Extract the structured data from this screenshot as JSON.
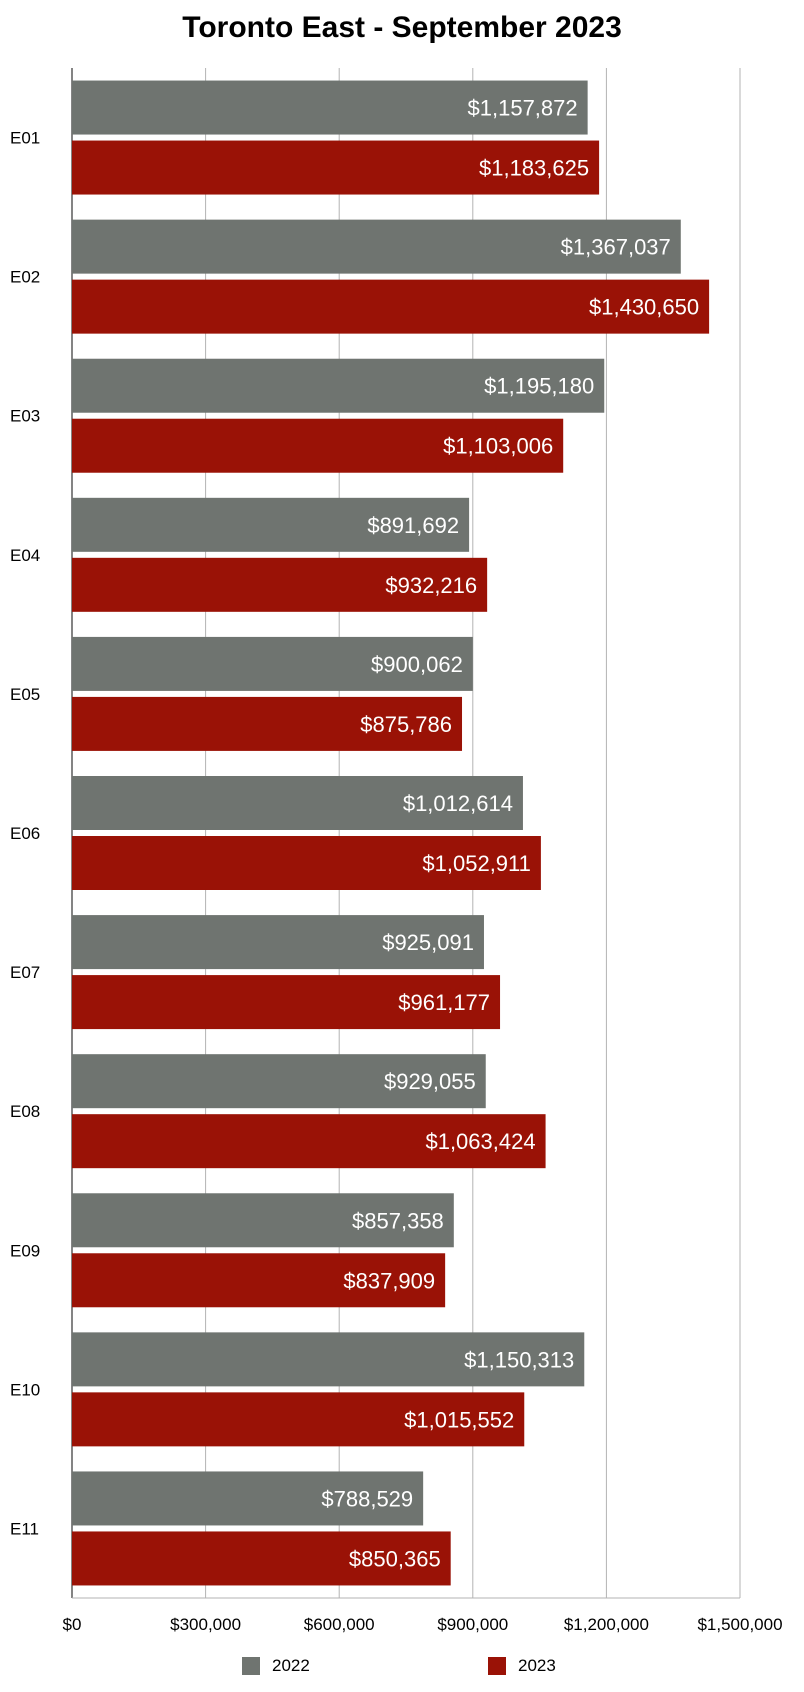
{
  "chart_data": {
    "type": "bar",
    "orientation": "horizontal",
    "title": "Toronto East - September 2023",
    "xlabel": "",
    "ylabel": "",
    "categories": [
      "E01",
      "E02",
      "E03",
      "E04",
      "E05",
      "E06",
      "E07",
      "E08",
      "E09",
      "E10",
      "E11"
    ],
    "series": [
      {
        "name": "2022",
        "color": "#6f7470",
        "values": [
          1157872,
          1367037,
          1195180,
          891692,
          900062,
          1012614,
          925091,
          929055,
          857358,
          1150313,
          788529
        ],
        "labels": [
          "$1,157,872",
          "$1,367,037",
          "$1,195,180",
          "$891,692",
          "$900,062",
          "$1,012,614",
          "$925,091",
          "$929,055",
          "$857,358",
          "$1,150,313",
          "$788,529"
        ]
      },
      {
        "name": "2023",
        "color": "#9a1206",
        "values": [
          1183625,
          1430650,
          1103006,
          932216,
          875786,
          1052911,
          961177,
          1063424,
          837909,
          1015552,
          850365
        ],
        "labels": [
          "$1,183,625",
          "$1,430,650",
          "$1,103,006",
          "$932,216",
          "$875,786",
          "$1,052,911",
          "$961,177",
          "$1,063,424",
          "$837,909",
          "$1,015,552",
          "$850,365"
        ]
      }
    ],
    "xlim": [
      0,
      1500000
    ],
    "ticks": [
      0,
      300000,
      600000,
      900000,
      1200000,
      1500000
    ],
    "tick_labels": [
      "$0",
      "$300,000",
      "$600,000",
      "$900,000",
      "$1,200,000",
      "$1,500,000"
    ],
    "grid": true,
    "legend_position": "bottom"
  }
}
